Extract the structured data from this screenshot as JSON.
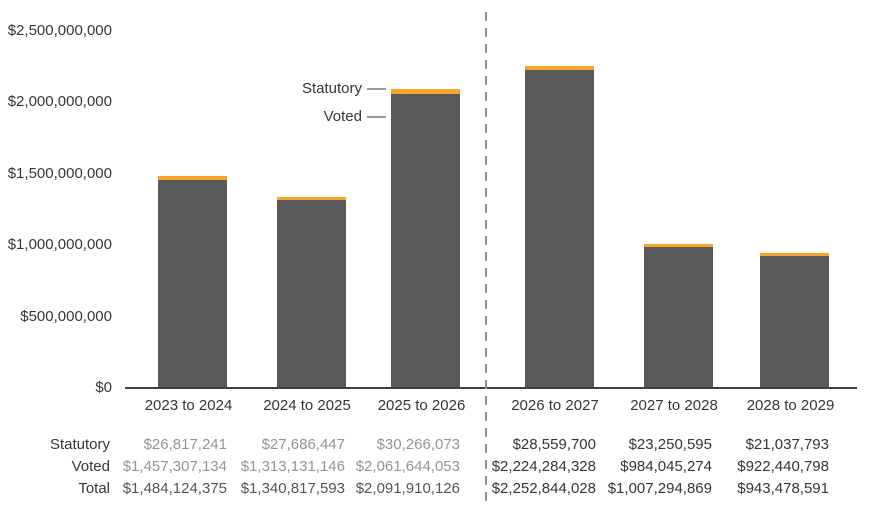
{
  "chart_data": {
    "type": "bar",
    "stacked": true,
    "title": "",
    "xlabel": "",
    "ylabel": "",
    "grid": false,
    "legend_position": "inline-annotation-near-third-bar",
    "categories": [
      "2023 to 2024",
      "2024 to 2025",
      "2025 to 2026",
      "2026 to 2027",
      "2027 to 2028",
      "2028 to 2029"
    ],
    "series": [
      {
        "name": "Voted",
        "color": "#595a5c",
        "values": [
          1457307134,
          1313131146,
          2061644053,
          2224284328,
          984045274,
          922440798
        ]
      },
      {
        "name": "Statutory",
        "color": "#f7a62b",
        "values": [
          26817241,
          27686447,
          30266073,
          28559700,
          23250595,
          21037793
        ]
      }
    ],
    "totals": [
      1484124375,
      1340817593,
      2091910126,
      2252844028,
      1007294869,
      943478591
    ],
    "ylim": [
      0,
      2500000000
    ],
    "y_ticks": [
      {
        "value": 0,
        "label": "$0"
      },
      {
        "value": 500000000,
        "label": "$500,000,000"
      },
      {
        "value": 1000000000,
        "label": "$1,000,000,000"
      },
      {
        "value": 1500000000,
        "label": "$1,500,000,000"
      },
      {
        "value": 2000000000,
        "label": "$2,000,000,000"
      },
      {
        "value": 2500000000,
        "label": "$2,500,000,000"
      }
    ],
    "annotations": [
      {
        "text": "Statutory",
        "series": "Statutory",
        "target_category": "2025 to 2026"
      },
      {
        "text": "Voted",
        "series": "Voted",
        "target_category": "2025 to 2026"
      }
    ],
    "divider_after_category": "2025 to 2026"
  },
  "table": {
    "columns": [
      "2023 to 2024",
      "2024 to 2025",
      "2025 to 2026",
      "2026 to 2027",
      "2027 to 2028",
      "2028 to 2029"
    ],
    "rows": [
      {
        "label": "Statutory",
        "values": [
          "$26,817,241",
          "$27,686,447",
          "$30,266,073",
          "$28,559,700",
          "$23,250,595",
          "$21,037,793"
        ]
      },
      {
        "label": "Voted",
        "values": [
          "$1,457,307,134",
          "$1,313,131,146",
          "$2,061,644,053",
          "$2,224,284,328",
          "$984,045,274",
          "$922,440,798"
        ]
      },
      {
        "label": "Total",
        "values": [
          "$1,484,124,375",
          "$1,340,817,593",
          "$2,091,910,126",
          "$2,252,844,028",
          "$1,007,294,869",
          "$943,478,591"
        ]
      }
    ],
    "muted_column_count": 3
  },
  "colors": {
    "voted_bar": "#595a5c",
    "statutory_bar": "#f7a62b",
    "axis_line": "#404040",
    "text_dark": "#363636",
    "text_mid": "#555555",
    "text_muted": "#949494",
    "divider": "#8f8f8f",
    "annotation_dash": "#9b9b9b"
  }
}
